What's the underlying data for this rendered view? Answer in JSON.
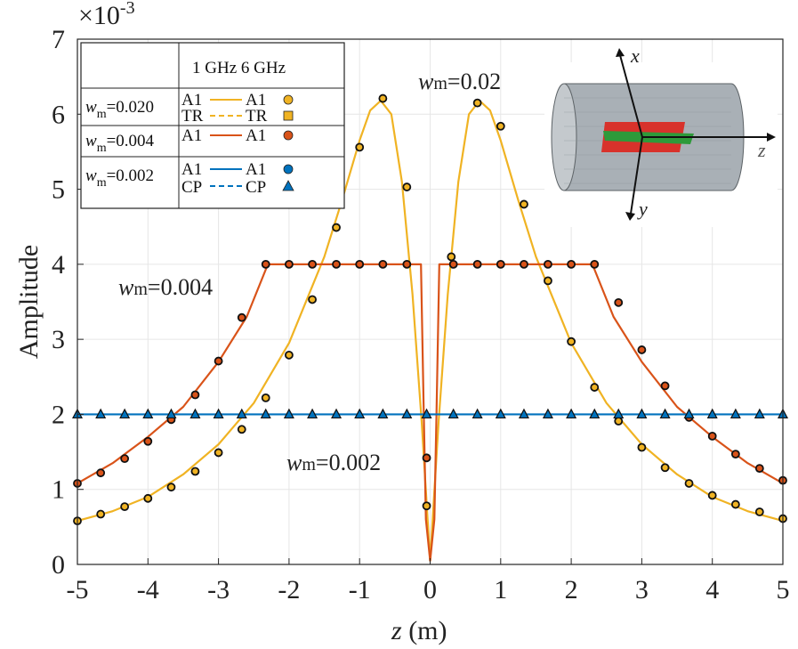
{
  "chart_data": {
    "type": "line",
    "xlabel_var": "z",
    "xlabel_unit": " (m)",
    "ylabel": "Amplitude",
    "y_exponent": {
      "prefix": "×10",
      "exp": "-3"
    },
    "xlim": [
      -5,
      5
    ],
    "ylim": [
      0,
      7
    ],
    "xticks": [
      "-5",
      "-4",
      "-3",
      "-2",
      "-1",
      "0",
      "1",
      "2",
      "3",
      "4",
      "5"
    ],
    "yticks": [
      "0",
      "1",
      "2",
      "3",
      "4",
      "5",
      "6",
      "7"
    ],
    "grid": true,
    "colors": {
      "wm020": "#f0b323",
      "wm004": "#d95319",
      "wm002": "#0072bd"
    },
    "series": [
      {
        "key": "wm020",
        "line": {
          "x": [
            -5,
            -4.5,
            -4,
            -3.5,
            -3,
            -2.5,
            -2,
            -1.5,
            -1.25,
            -1,
            -0.85,
            -0.7,
            -0.55,
            -0.4,
            -0.25,
            -0.12,
            0,
            0.12,
            0.25,
            0.4,
            0.55,
            0.7,
            0.85,
            1,
            1.25,
            1.5,
            2,
            2.5,
            3,
            3.5,
            4,
            4.5,
            5
          ],
          "y": [
            0.58,
            0.71,
            0.9,
            1.2,
            1.6,
            2.15,
            2.95,
            4.1,
            4.85,
            5.65,
            6.05,
            6.18,
            6.0,
            5.1,
            3.6,
            1.9,
            0.05,
            1.9,
            3.6,
            5.1,
            6.0,
            6.18,
            6.05,
            5.65,
            4.85,
            4.1,
            2.95,
            2.15,
            1.6,
            1.2,
            0.9,
            0.71,
            0.58
          ]
        },
        "markers": {
          "x": [
            -5,
            -4.67,
            -4.33,
            -4.0,
            -3.67,
            -3.33,
            -3.0,
            -2.67,
            -2.33,
            -2.0,
            -1.67,
            -1.33,
            -1.0,
            -0.67,
            -0.33,
            0.3,
            0.67,
            1.0,
            1.33,
            1.67,
            2.0,
            2.33,
            2.67,
            3.0,
            3.33,
            3.67,
            4.0,
            4.33,
            4.67,
            5.0
          ],
          "y": [
            0.58,
            0.67,
            0.77,
            0.88,
            1.03,
            1.24,
            1.49,
            1.8,
            2.22,
            2.79,
            3.53,
            4.49,
            5.56,
            6.21,
            5.03,
            4.1,
            6.15,
            5.84,
            4.8,
            3.78,
            2.97,
            2.36,
            1.91,
            1.56,
            1.29,
            1.08,
            0.92,
            0.8,
            0.7,
            0.61
          ]
        }
      },
      {
        "key": "wm004",
        "line": {
          "x": [
            -5,
            -4.5,
            -4,
            -3.5,
            -3,
            -2.6,
            -2.3,
            -0.13,
            -0.09,
            -0.06,
            0,
            0.06,
            0.09,
            0.13,
            2.3,
            2.6,
            3,
            3.5,
            4,
            4.5,
            5
          ],
          "y": [
            1.08,
            1.35,
            1.7,
            2.1,
            2.7,
            3.3,
            4.0,
            4.0,
            2.0,
            0.6,
            0.05,
            0.6,
            2.0,
            4.0,
            4.0,
            3.3,
            2.7,
            2.1,
            1.7,
            1.35,
            1.08
          ]
        },
        "markers": {
          "x": [
            -5,
            -4.67,
            -4.33,
            -4.0,
            -3.67,
            -3.33,
            -3.0,
            -2.67,
            -2.33,
            -2.0,
            -1.67,
            -1.33,
            -1.0,
            -0.67,
            -0.33,
            -0.05,
            0.33,
            0.67,
            1.0,
            1.33,
            1.67,
            2.0,
            2.33,
            2.67,
            3.0,
            3.33,
            3.67,
            4.0,
            4.33,
            4.67,
            5.0
          ],
          "y": [
            1.08,
            1.22,
            1.41,
            1.64,
            1.93,
            2.26,
            2.71,
            3.29,
            4.0,
            4.0,
            4.0,
            4.0,
            4.0,
            4.0,
            4.0,
            1.42,
            4.0,
            4.0,
            4.0,
            4.0,
            4.0,
            4.0,
            4.0,
            3.49,
            2.86,
            2.38,
            1.96,
            1.71,
            1.47,
            1.28,
            1.12
          ]
        }
      },
      {
        "key": "wm002",
        "line": {
          "x": [
            -5,
            5
          ],
          "y": [
            2.0,
            2.0
          ]
        },
        "markers": {
          "x": [
            -5,
            -4.67,
            -4.33,
            -4.0,
            -3.67,
            -3.33,
            -3.0,
            -2.67,
            -2.33,
            -2.0,
            -1.67,
            -1.33,
            -1.0,
            -0.67,
            -0.33,
            -0.05,
            0.33,
            0.67,
            1.0,
            1.33,
            1.67,
            2.0,
            2.33,
            2.67,
            3.0,
            3.33,
            3.67,
            4.0,
            4.33,
            4.67,
            5.0
          ],
          "y": [
            2,
            2,
            2,
            2,
            2,
            2,
            2,
            2,
            2,
            2,
            2,
            2,
            2,
            2,
            2,
            2,
            2,
            2,
            2,
            2,
            2,
            2,
            2,
            2,
            2,
            2,
            2,
            2,
            2,
            2,
            2
          ]
        }
      },
      {
        "key": "wm020_center_dots",
        "markers": {
          "x": [
            -0.05
          ],
          "y": [
            0.78
          ]
        }
      }
    ],
    "annotations": [
      {
        "var": "w",
        "sub": "m",
        "text": "=0.02"
      },
      {
        "var": "w",
        "sub": "m",
        "text": "=0.004"
      },
      {
        "var": "w",
        "sub": "m",
        "text": "=0.002"
      }
    ],
    "legend": {
      "placement": "top-left",
      "header": "1 GHz  6 GHz",
      "rows": [
        {
          "var": "w",
          "sub": "m",
          "value": "=0.020",
          "lines": [
            "A1",
            "TR"
          ],
          "marks": [
            "A1",
            "TR"
          ],
          "symbols": [
            "circle",
            "square"
          ],
          "color": "#f0b323"
        },
        {
          "var": "w",
          "sub": "m",
          "value": "=0.004",
          "lines": [
            "A1"
          ],
          "marks": [
            "A1"
          ],
          "symbols": [
            "circle"
          ],
          "color": "#d95319"
        },
        {
          "var": "w",
          "sub": "m",
          "value": "=0.002",
          "lines": [
            "A1",
            "CP"
          ],
          "marks": [
            "A1",
            "CP"
          ],
          "symbols": [
            "circle",
            "triangle"
          ],
          "color": "#0072bd"
        }
      ]
    },
    "inset_axes": [
      "x",
      "y",
      "z"
    ]
  }
}
